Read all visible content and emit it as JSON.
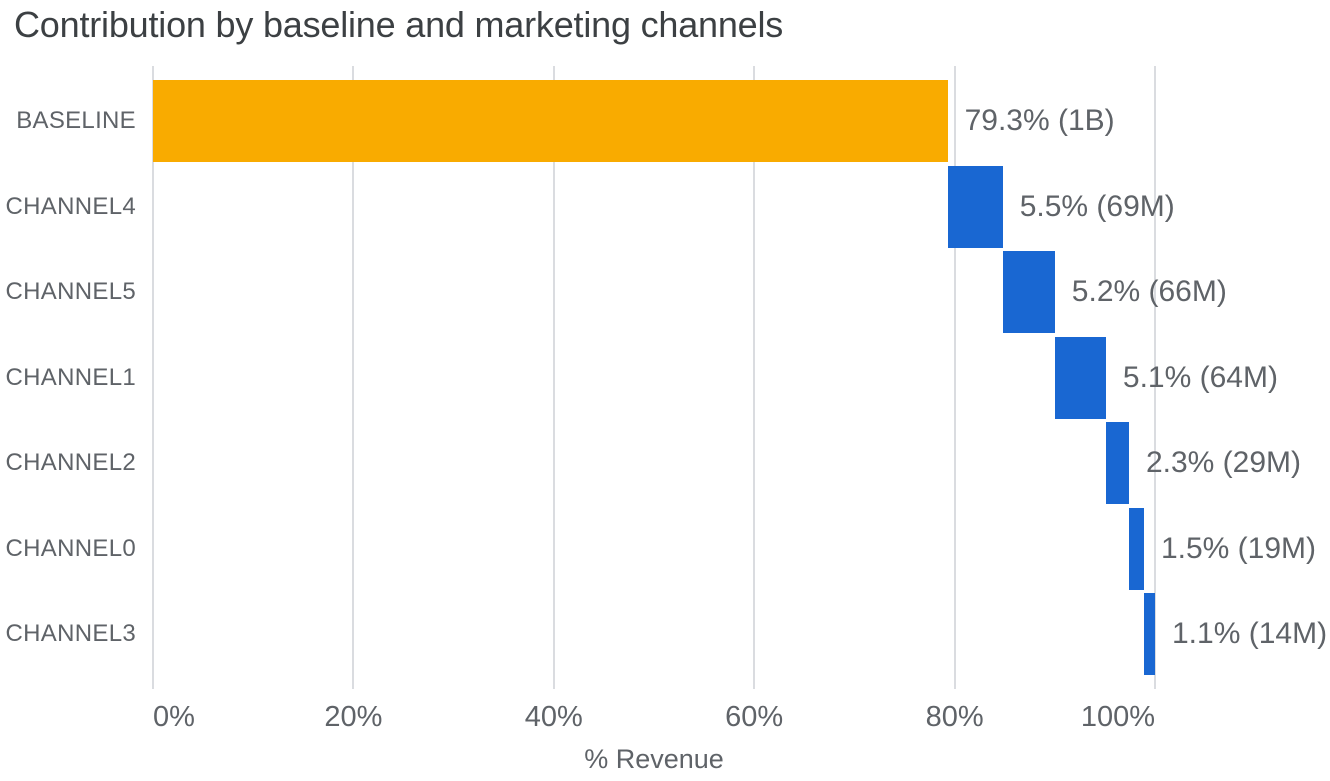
{
  "title": "Contribution by baseline and marketing channels",
  "colors": {
    "baseline_bar": "#F9AB00",
    "channel_bar": "#1967D2",
    "gridline": "#DADCE0",
    "title_text": "#3C4043",
    "label_text": "#5F6368"
  },
  "chart_data": {
    "type": "bar",
    "subtype": "waterfall",
    "orientation": "horizontal",
    "title": "Contribution by baseline and marketing channels",
    "xlabel": "% Revenue",
    "ylabel": "",
    "xlim": [
      0,
      100
    ],
    "grid": true,
    "legend": "none",
    "x_ticks": [
      {
        "pct": 0,
        "label": "0%"
      },
      {
        "pct": 20,
        "label": "20%"
      },
      {
        "pct": 40,
        "label": "40%"
      },
      {
        "pct": 60,
        "label": "60%"
      },
      {
        "pct": 80,
        "label": "80%"
      },
      {
        "pct": 100,
        "label": "100%"
      }
    ],
    "categories": [
      "BASELINE",
      "CHANNEL4",
      "CHANNEL5",
      "CHANNEL1",
      "CHANNEL2",
      "CHANNEL0",
      "CHANNEL3"
    ],
    "segments": [
      {
        "category": "BASELINE",
        "start": 0.0,
        "end": 79.3,
        "value_pct": 79.3,
        "value_abs": "1B",
        "label": "79.3% (1B)",
        "color": "baseline_bar"
      },
      {
        "category": "CHANNEL4",
        "start": 79.3,
        "end": 84.8,
        "value_pct": 5.5,
        "value_abs": "69M",
        "label": "5.5% (69M)",
        "color": "channel_bar"
      },
      {
        "category": "CHANNEL5",
        "start": 84.8,
        "end": 90.0,
        "value_pct": 5.2,
        "value_abs": "66M",
        "label": "5.2% (66M)",
        "color": "channel_bar"
      },
      {
        "category": "CHANNEL1",
        "start": 90.0,
        "end": 95.1,
        "value_pct": 5.1,
        "value_abs": "64M",
        "label": "5.1% (64M)",
        "color": "channel_bar"
      },
      {
        "category": "CHANNEL2",
        "start": 95.1,
        "end": 97.4,
        "value_pct": 2.3,
        "value_abs": "29M",
        "label": "2.3% (29M)",
        "color": "channel_bar"
      },
      {
        "category": "CHANNEL0",
        "start": 97.4,
        "end": 98.9,
        "value_pct": 1.5,
        "value_abs": "19M",
        "label": "1.5% (19M)",
        "color": "channel_bar"
      },
      {
        "category": "CHANNEL3",
        "start": 98.9,
        "end": 100.0,
        "value_pct": 1.1,
        "value_abs": "14M",
        "label": "1.1% (14M)",
        "color": "channel_bar"
      }
    ]
  }
}
